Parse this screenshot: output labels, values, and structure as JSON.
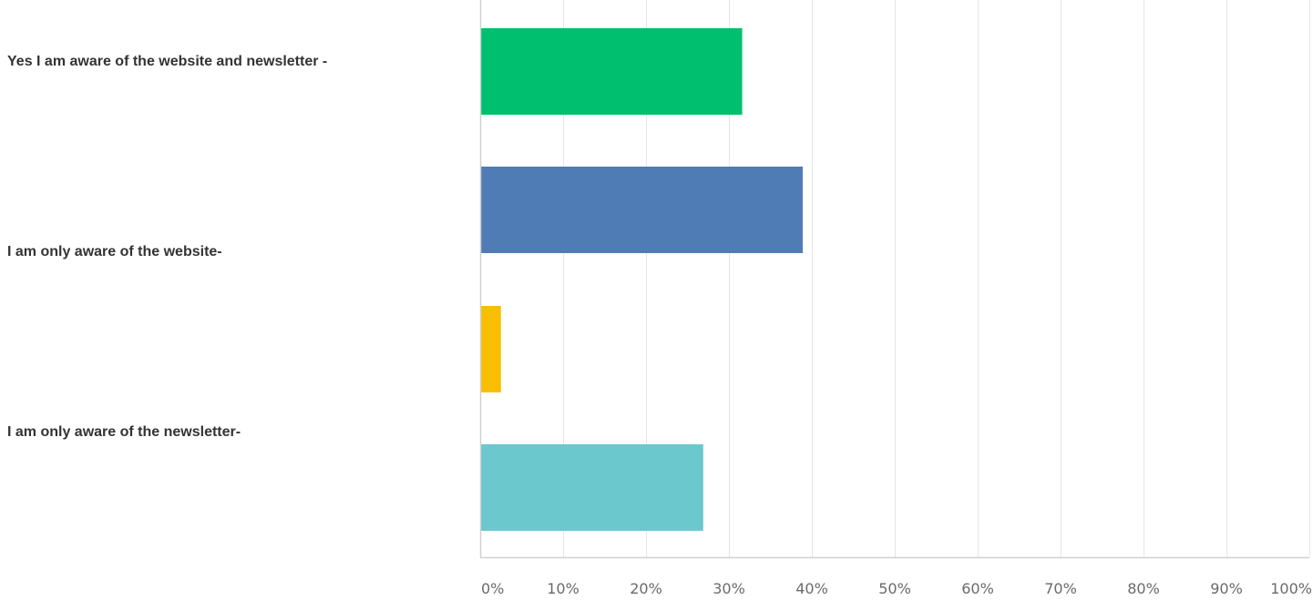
{
  "chart_data": {
    "type": "bar",
    "orientation": "horizontal",
    "title": "",
    "xlabel": "",
    "ylabel": "",
    "xlim": [
      0,
      100
    ],
    "grid": true,
    "categories": [
      "Yes I am aware of the website and newsletter -",
      "I am only aware of the website-",
      "",
      "I am only aware of the newsletter-"
    ],
    "values": [
      31.6,
      38.9,
      2.5,
      26.9
    ],
    "colors": [
      "#00bf6f",
      "#507cb6",
      "#f9be00",
      "#6bc8cd"
    ],
    "ticks": [
      "0%",
      "10%",
      "20%",
      "30%",
      "40%",
      "50%",
      "60%",
      "70%",
      "80%",
      "90%",
      "100%"
    ],
    "tick_values": [
      0,
      10,
      20,
      30,
      40,
      50,
      60,
      70,
      80,
      90,
      100
    ]
  }
}
